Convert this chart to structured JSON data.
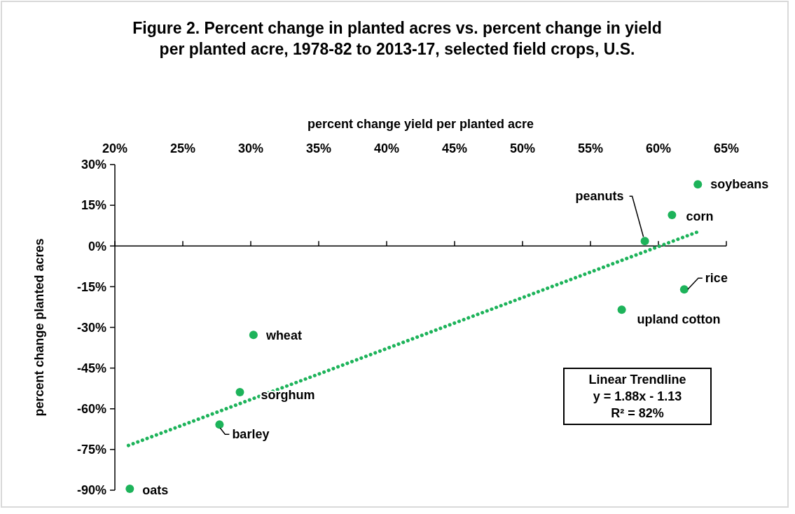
{
  "chart_data": {
    "type": "scatter",
    "title": "Figure 2. Percent change in planted acres vs. percent change in yield\nper planted acre, 1978-82 to 2013-17, selected field crops, U.S.",
    "xlabel": "percent change yield per planted acre",
    "ylabel": "percent change planted acres",
    "xlim": [
      20,
      65
    ],
    "xticks": [
      {
        "value": 20,
        "label": "20%"
      },
      {
        "value": 25,
        "label": "25%"
      },
      {
        "value": 30,
        "label": "30%"
      },
      {
        "value": 35,
        "label": "35%"
      },
      {
        "value": 40,
        "label": "40%"
      },
      {
        "value": 45,
        "label": "45%"
      },
      {
        "value": 50,
        "label": "50%"
      },
      {
        "value": 55,
        "label": "55%"
      },
      {
        "value": 60,
        "label": "60%"
      },
      {
        "value": 65,
        "label": "65%"
      }
    ],
    "ylim": [
      -90,
      30
    ],
    "yticks": [
      {
        "value": 30,
        "label": "30%"
      },
      {
        "value": 15,
        "label": "15%"
      },
      {
        "value": 0,
        "label": "0%"
      },
      {
        "value": -15,
        "label": "-15%"
      },
      {
        "value": -30,
        "label": "-30%"
      },
      {
        "value": -45,
        "label": "-45%"
      },
      {
        "value": -60,
        "label": "-60%"
      },
      {
        "value": -75,
        "label": "-75%"
      },
      {
        "value": -90,
        "label": "-90%"
      }
    ],
    "marker": "circle",
    "series": [
      {
        "color": "#1db35a",
        "x": [
          62.9,
          61.0,
          59.0,
          61.9,
          57.3,
          30.2,
          29.2,
          27.7,
          21.1
        ],
        "values": [
          22.7,
          11.4,
          1.8,
          -16.0,
          -23.5,
          -32.8,
          -53.9,
          -65.8,
          -89.5
        ]
      },
      {
        "type": "line",
        "color": "#1db35a",
        "line_style": "dotted",
        "marker": "none",
        "x": [
          21,
          63
        ],
        "values": [
          -73.5,
          5.4
        ]
      }
    ],
    "annotations": [
      {
        "text": "soybeans",
        "x": 62.9,
        "y": 22.7
      },
      {
        "text": "corn",
        "x": 61.0,
        "y": 11.4
      },
      {
        "text": "peanuts",
        "x": 59.0,
        "y": 1.8
      },
      {
        "text": "rice",
        "x": 61.9,
        "y": -16.0
      },
      {
        "text": "upland cotton",
        "x": 57.3,
        "y": -23.5
      },
      {
        "text": "wheat",
        "x": 30.2,
        "y": -32.8
      },
      {
        "text": "sorghum",
        "x": 29.2,
        "y": -53.9
      },
      {
        "text": "barley",
        "x": 27.7,
        "y": -65.8
      },
      {
        "text": "oats",
        "x": 21.1,
        "y": -89.5
      },
      "Linear Trendline\ny = 1.88x - 1.13\nR² = 82%"
    ]
  }
}
